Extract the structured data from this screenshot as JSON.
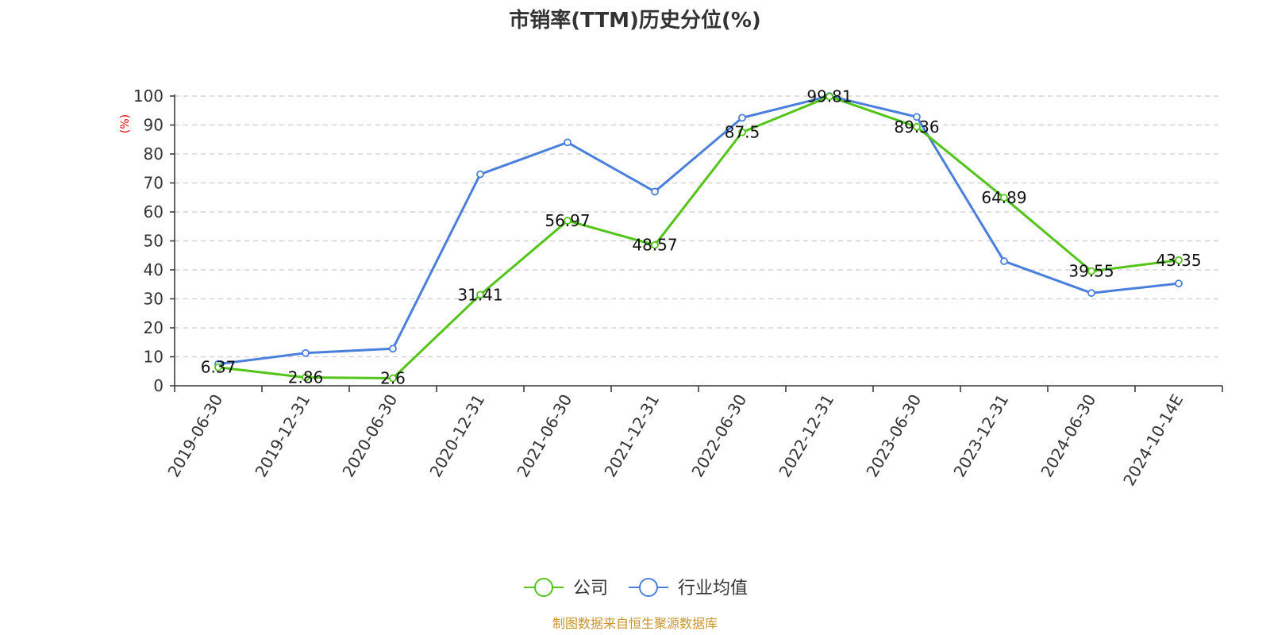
{
  "chart_data": {
    "type": "line",
    "title": "市销率(TTM)历史分位(%)",
    "ylabel": "(%)",
    "ylim": [
      0,
      100
    ],
    "yticks": [
      0,
      10,
      20,
      30,
      40,
      50,
      60,
      70,
      80,
      90,
      100
    ],
    "grid": true,
    "legend_position": "bottom",
    "categories": [
      "2019-06-30",
      "2019-12-31",
      "2020-06-30",
      "2020-12-31",
      "2021-06-30",
      "2021-12-31",
      "2022-06-30",
      "2022-12-31",
      "2023-06-30",
      "2023-12-31",
      "2024-06-30",
      "2024-10-14E"
    ],
    "series": [
      {
        "name": "公司",
        "color": "#52c41a",
        "labels": true,
        "values": [
          6.37,
          2.86,
          2.6,
          31.41,
          56.97,
          48.57,
          87.5,
          99.81,
          89.36,
          64.89,
          39.55,
          43.35
        ]
      },
      {
        "name": "行业均值",
        "color": "#4a7fdc",
        "labels": false,
        "values": [
          7.5,
          11.3,
          12.8,
          73.0,
          84.0,
          67.0,
          92.5,
          100.0,
          92.8,
          43.0,
          32.0,
          35.3
        ]
      }
    ],
    "source": "制图数据来自恒生聚源数据库"
  }
}
